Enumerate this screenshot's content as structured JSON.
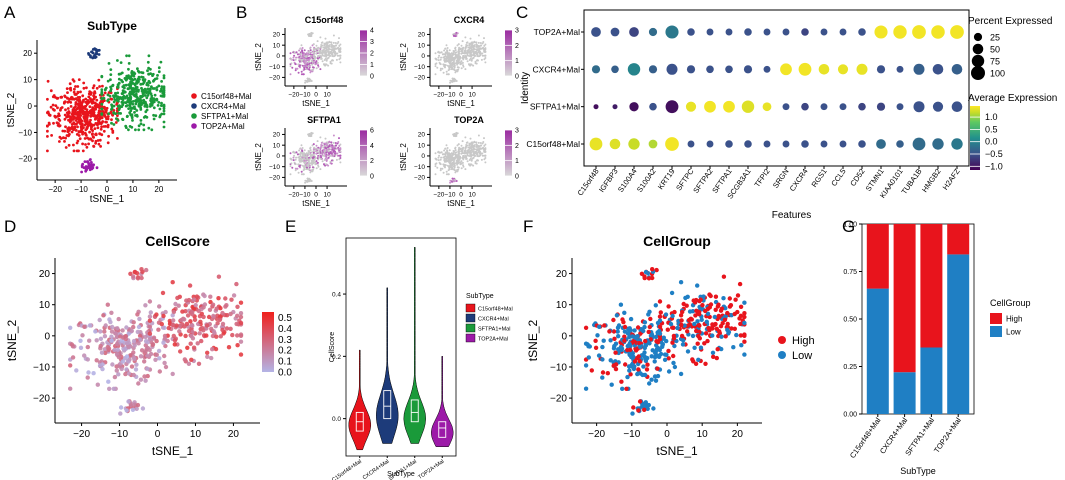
{
  "figure": {
    "panel_letters": [
      "A",
      "B",
      "C",
      "D",
      "E",
      "F",
      "G"
    ]
  },
  "colors": {
    "c15": "#e8141c",
    "cxcr4": "#1d3b7a",
    "sftpa1": "#1a9a3a",
    "top2a": "#9c1aa8",
    "high": "#e8141c",
    "low": "#1f7fc4",
    "grey": "#c8c8c8",
    "purple_high": "#9a2aa0",
    "score_high": "#f0201c",
    "score_low": "#b4b4e6"
  },
  "chart_data": [
    {
      "id": "A",
      "type": "scatter",
      "title": "SubType",
      "xlabel": "tSNE_1",
      "ylabel": "tSNE_2",
      "xlim": [
        -27,
        27
      ],
      "ylim": [
        -28,
        25
      ],
      "xticks": [
        -20,
        -10,
        0,
        10,
        20
      ],
      "yticks": [
        -20,
        -10,
        0,
        10,
        20
      ],
      "legend_position": "right",
      "series": [
        {
          "name": "C15orf48+Mal",
          "color_key": "c15"
        },
        {
          "name": "CXCR4+Mal",
          "color_key": "cxcr4"
        },
        {
          "name": "SFTPA1+Mal",
          "color_key": "sftpa1"
        },
        {
          "name": "TOP2A+Mal",
          "color_key": "top2a"
        }
      ]
    },
    {
      "id": "B",
      "type": "scatter",
      "xlabel": "tSNE_1",
      "ylabel": "tSNE_2",
      "xticks": [
        -20,
        -10,
        0,
        10,
        20
      ],
      "yticks": [
        -20,
        -10,
        0,
        10,
        20
      ],
      "xlim": [
        -28,
        28
      ],
      "ylim": [
        -28,
        26
      ],
      "features": [
        {
          "name": "C15orf48",
          "colorbar_max": 4,
          "colorbar_ticks": [
            0,
            1,
            2,
            3,
            4
          ]
        },
        {
          "name": "CXCR4",
          "colorbar_max": 3,
          "colorbar_ticks": [
            0,
            1,
            2,
            3
          ]
        },
        {
          "name": "SFTPA1",
          "colorbar_max": 6,
          "colorbar_ticks": [
            0,
            2,
            4,
            6
          ]
        },
        {
          "name": "TOP2A",
          "colorbar_max": 3,
          "colorbar_ticks": [
            0,
            1,
            2,
            3
          ]
        }
      ]
    },
    {
      "id": "C",
      "type": "dotplot",
      "xlabel": "Features",
      "ylabel": "Identity",
      "identities": [
        "TOP2A+Mal",
        "CXCR4+Mal",
        "SFTPA1+Mal",
        "C15orf48+Mal"
      ],
      "features": [
        "C15orf48",
        "IGFBP3",
        "S100A4",
        "S100A2",
        "KRT19",
        "SFTPC",
        "SFTPA2",
        "SFTPA1",
        "SCGB3A1",
        "TFPI2",
        "SRGN",
        "CXCR4",
        "RGS1",
        "CCL5",
        "CD52",
        "STMN1",
        "KIAA0101",
        "TUBA1B",
        "HMGB2",
        "H2AFZ"
      ],
      "percent": [
        [
          40,
          30,
          40,
          25,
          85,
          20,
          15,
          15,
          20,
          15,
          15,
          20,
          15,
          15,
          20,
          85,
          90,
          95,
          92,
          95
        ],
        [
          25,
          20,
          75,
          25,
          55,
          25,
          20,
          20,
          25,
          15,
          65,
          80,
          50,
          45,
          55,
          25,
          15,
          55,
          50,
          50
        ],
        [
          5,
          5,
          35,
          20,
          80,
          45,
          65,
          65,
          75,
          30,
          15,
          20,
          15,
          15,
          20,
          25,
          15,
          55,
          45,
          50
        ],
        [
          80,
          50,
          60,
          30,
          95,
          15,
          15,
          20,
          20,
          15,
          15,
          20,
          15,
          15,
          20,
          40,
          20,
          80,
          60,
          60
        ]
      ],
      "avg_expr": [
        [
          -0.5,
          -0.5,
          -0.6,
          -0.3,
          -0.2,
          -0.5,
          -0.5,
          -0.5,
          -0.5,
          -0.5,
          -0.5,
          -0.6,
          -0.5,
          -0.5,
          -0.5,
          1.4,
          1.4,
          1.4,
          1.4,
          1.4
        ],
        [
          -0.3,
          -0.4,
          -0.1,
          -0.4,
          -0.5,
          -0.5,
          -0.5,
          -0.5,
          -0.5,
          -0.5,
          1.4,
          1.4,
          1.3,
          1.3,
          1.3,
          -0.5,
          -0.5,
          -0.4,
          -0.5,
          -0.4
        ],
        [
          -1.0,
          -0.9,
          -1.0,
          -0.5,
          -1.0,
          1.3,
          1.4,
          1.4,
          1.2,
          1.3,
          -0.5,
          -0.6,
          -0.5,
          -0.5,
          -0.6,
          -0.6,
          -0.5,
          -0.5,
          -0.5,
          -0.5
        ],
        [
          1.3,
          1.2,
          1.0,
          0.9,
          1.4,
          -0.5,
          -0.5,
          -0.5,
          -0.5,
          -0.5,
          -0.5,
          -0.5,
          -0.5,
          -0.5,
          -0.5,
          -0.3,
          -0.4,
          -0.3,
          -0.3,
          -0.2
        ]
      ],
      "size_legend_title": "Percent Expressed",
      "size_legend": [
        25,
        50,
        75,
        100
      ],
      "color_legend_title": "Average Expression",
      "color_legend_ticks": [
        1.0,
        0.5,
        0.0,
        -0.5,
        -1.0
      ],
      "color_legend_tick_labels": [
        "1.0",
        "0.5",
        "0.0",
        "−0.5",
        "−1.0"
      ]
    },
    {
      "id": "D",
      "type": "scatter",
      "title": "CellScore",
      "xlabel": "tSNE_1",
      "ylabel": "tSNE_2",
      "xlim": [
        -27,
        27
      ],
      "ylim": [
        -28,
        25
      ],
      "xticks": [
        -20,
        -10,
        0,
        10,
        20
      ],
      "yticks": [
        -20,
        -10,
        0,
        10,
        20
      ],
      "colorbar_ticks": [
        0.0,
        0.1,
        0.2,
        0.3,
        0.4,
        0.5
      ],
      "colorbar_tick_labels": [
        "0.0",
        "0.1",
        "0.2",
        "0.3",
        "0.4",
        "0.5"
      ]
    },
    {
      "id": "E",
      "type": "violin",
      "xlabel": "SubType",
      "ylabel": "CellScore",
      "ylim": [
        -0.12,
        0.58
      ],
      "yticks": [
        0.0,
        0.2,
        0.4
      ],
      "ytick_labels": [
        "0.0",
        "0.2",
        "0.4"
      ],
      "categories": [
        "C15orf48+Mal",
        "CXCR4+Mal",
        "SFTPA1+Mal",
        "TOP2A+Mal"
      ],
      "stats": [
        {
          "min": -0.1,
          "q1": -0.04,
          "median": -0.01,
          "q3": 0.02,
          "max": 0.22,
          "mode": -0.02
        },
        {
          "min": -0.08,
          "q1": 0.0,
          "median": 0.04,
          "q3": 0.09,
          "max": 0.42,
          "mode": 0.01
        },
        {
          "min": -0.08,
          "q1": -0.01,
          "median": 0.02,
          "q3": 0.06,
          "max": 0.55,
          "mode": 0.0
        },
        {
          "min": -0.09,
          "q1": -0.06,
          "median": -0.03,
          "q3": -0.01,
          "max": 0.2,
          "mode": -0.045
        }
      ],
      "legend_title": "SubType",
      "legend": [
        "C15orf48+Mal",
        "CXCR4+Mal",
        "SFTPA1+Mal",
        "TOP2A+Mal"
      ]
    },
    {
      "id": "F",
      "type": "scatter",
      "title": "CellGroup",
      "xlabel": "tSNE_1",
      "ylabel": "tSNE_2",
      "xlim": [
        -27,
        27
      ],
      "ylim": [
        -28,
        25
      ],
      "xticks": [
        -20,
        -10,
        0,
        10,
        20
      ],
      "yticks": [
        -20,
        -10,
        0,
        10,
        20
      ],
      "legend": [
        "High",
        "Low"
      ]
    },
    {
      "id": "G",
      "type": "bar",
      "stacked": true,
      "xlabel": "SubType",
      "ylabel": "",
      "categories": [
        "C15orf48+Mal",
        "CXCR4+Mal",
        "SFTPA1+Mal",
        "TOP2A+Mal"
      ],
      "series": [
        {
          "name": "Low",
          "values": [
            0.66,
            0.22,
            0.35,
            0.84
          ]
        },
        {
          "name": "High",
          "values": [
            0.34,
            0.78,
            0.65,
            0.16
          ]
        }
      ],
      "ylim": [
        0,
        1
      ],
      "yticks": [
        0.0,
        0.25,
        0.5,
        0.75,
        1.0
      ],
      "ytick_labels": [
        "0.00",
        "0.25",
        "0.50",
        "0.75",
        "1.00"
      ],
      "legend_title": "CellGroup",
      "legend": [
        "High",
        "Low"
      ]
    }
  ]
}
